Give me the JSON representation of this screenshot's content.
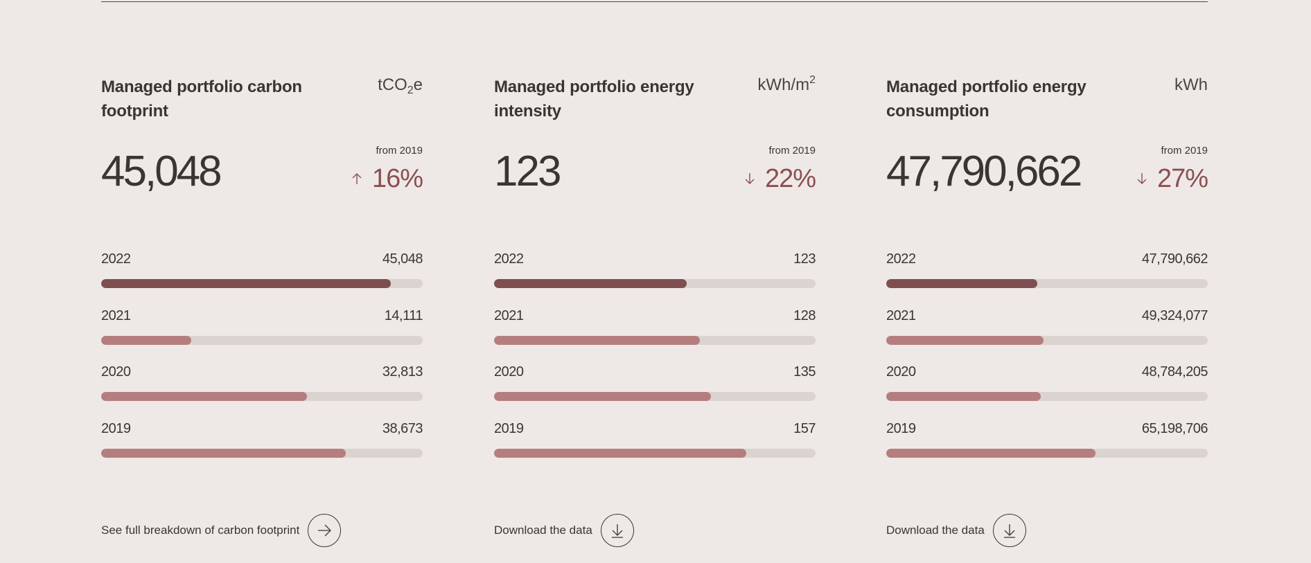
{
  "colors": {
    "background": "#eee9e6",
    "accent": "#8a4f52",
    "bar_current": "#7f4e50",
    "bar_previous": "#b57e7e",
    "bar_track": "#dbd3d0"
  },
  "cards": [
    {
      "title": "Managed portfolio carbon footprint",
      "unit_main": "tCO",
      "unit_sub": "2",
      "unit_after": "e",
      "unit_sup": "",
      "value": "45,048",
      "from_label": "from 2019",
      "change_direction": "up",
      "change_icon": "arrow-up-icon",
      "change_pct": "16%",
      "bars": [
        {
          "year": "2022",
          "value": "45,048",
          "fill_fraction": 0.9,
          "current": true
        },
        {
          "year": "2021",
          "value": "14,111",
          "fill_fraction": 0.28,
          "current": false
        },
        {
          "year": "2020",
          "value": "32,813",
          "fill_fraction": 0.64,
          "current": false
        },
        {
          "year": "2019",
          "value": "38,673",
          "fill_fraction": 0.76,
          "current": false
        }
      ],
      "cta_label": "See full breakdown of carbon footprint",
      "cta_icon": "arrow-right-icon"
    },
    {
      "title": "Managed portfolio energy intensity",
      "unit_main": "kWh/m",
      "unit_sub": "",
      "unit_after": "",
      "unit_sup": "2",
      "value": "123",
      "from_label": "from 2019",
      "change_direction": "down",
      "change_icon": "arrow-down-icon",
      "change_pct": "22%",
      "bars": [
        {
          "year": "2022",
          "value": "123",
          "fill_fraction": 0.6,
          "current": true
        },
        {
          "year": "2021",
          "value": "128",
          "fill_fraction": 0.64,
          "current": false
        },
        {
          "year": "2020",
          "value": "135",
          "fill_fraction": 0.675,
          "current": false
        },
        {
          "year": "2019",
          "value": "157",
          "fill_fraction": 0.785,
          "current": false
        }
      ],
      "cta_label": "Download the data",
      "cta_icon": "download-icon"
    },
    {
      "title": "Managed portfolio energy consumption",
      "unit_main": "kWh",
      "unit_sub": "",
      "unit_after": "",
      "unit_sup": "",
      "value": "47,790,662",
      "from_label": "from 2019",
      "change_direction": "down",
      "change_icon": "arrow-down-icon",
      "change_pct": "27%",
      "bars": [
        {
          "year": "2022",
          "value": "47,790,662",
          "fill_fraction": 0.47,
          "current": true
        },
        {
          "year": "2021",
          "value": "49,324,077",
          "fill_fraction": 0.49,
          "current": false
        },
        {
          "year": "2020",
          "value": "48,784,205",
          "fill_fraction": 0.48,
          "current": false
        },
        {
          "year": "2019",
          "value": "65,198,706",
          "fill_fraction": 0.65,
          "current": false
        }
      ],
      "cta_label": "Download the data",
      "cta_icon": "download-icon"
    }
  ]
}
